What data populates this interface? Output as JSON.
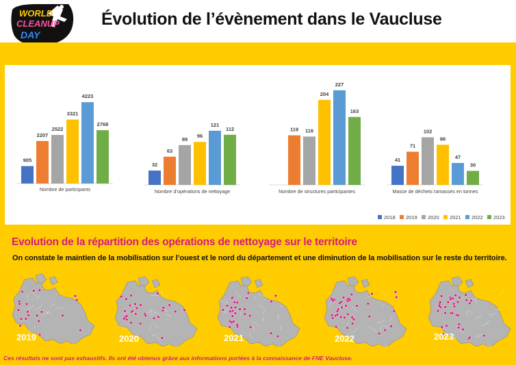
{
  "header": {
    "title": "Évolution de l’évènement dans le Vaucluse",
    "logo_text": [
      "WORLD",
      "CLEANUP",
      "DAY"
    ]
  },
  "colors": {
    "yellow": "#ffcc00",
    "pink": "#d6197f",
    "map_gray": "#b4b4b4"
  },
  "chart_data": {
    "type": "bar",
    "categories": [
      "Nombre de participants",
      "Nombre d’opérations de nettoyage",
      "Nombre de structures participantes",
      "Masse de déchets ramassés en tonnes"
    ],
    "series": [
      {
        "name": "2018",
        "color": "#4472c4",
        "values": [
          905,
          32,
          null,
          41
        ]
      },
      {
        "name": "2019",
        "color": "#ed7d31",
        "values": [
          2207,
          63,
          119,
          71
        ]
      },
      {
        "name": "2020",
        "color": "#a5a5a5",
        "values": [
          2522,
          89,
          116,
          102
        ]
      },
      {
        "name": "2021",
        "color": "#ffc000",
        "values": [
          3321,
          96,
          204,
          86
        ]
      },
      {
        "name": "2022",
        "color": "#5b9bd5",
        "values": [
          4223,
          121,
          227,
          47
        ]
      },
      {
        "name": "2023",
        "color": "#70ad47",
        "values": [
          2768,
          112,
          163,
          30
        ]
      }
    ],
    "legend_position": "bottom-right",
    "grid": false
  },
  "section": {
    "title": "Evolution de la répartition des opérations de nettoyage sur le territoire",
    "subtitle": "On constate le maintien de la mobilisation sur l’ouest et le nord du département et une diminution de la mobilisation sur le reste du territoire."
  },
  "maps": [
    {
      "year": "2019"
    },
    {
      "year": "2020"
    },
    {
      "year": "2021"
    },
    {
      "year": "2022"
    },
    {
      "year": "2023"
    }
  ],
  "footnote": "Ces résultats ne sont pas exhaustifs. Ils ont été obtenus grâce aux informations portées à la connaissance de FNE Vaucluse."
}
